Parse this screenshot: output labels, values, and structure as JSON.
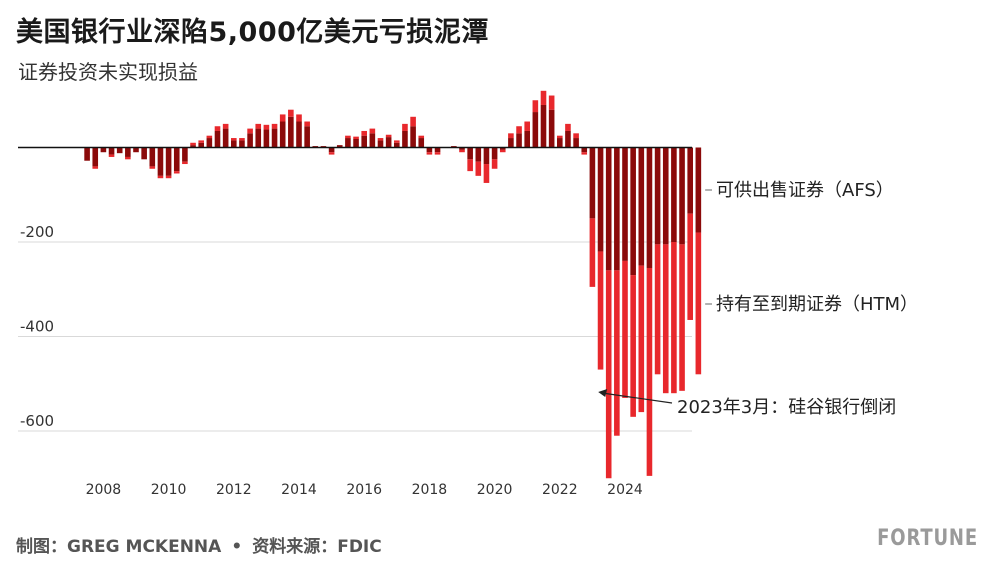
{
  "header": {
    "title": "美国银行业深陷5,000亿美元亏损泥潭",
    "subtitle": "证券投资未实现损益"
  },
  "footer": {
    "credit": "制图：GREG MCKENNA",
    "separator": "•",
    "source": "资料来源：FDIC",
    "brand": "FORTUNE"
  },
  "colors": {
    "afs": "#8b0a0a",
    "htm": "#e8282c",
    "grid": "#d9d9d9",
    "zero_line": "#111111",
    "axis_text": "#333333"
  },
  "chart_data": {
    "type": "bar",
    "stacked": true,
    "unit": "十亿美元",
    "x_start": "2007-Q1",
    "frequency": "quarterly",
    "x_tick_labels": [
      "2008",
      "2010",
      "2012",
      "2014",
      "2016",
      "2018",
      "2020",
      "2022",
      "2024"
    ],
    "y_ticks": [
      -200,
      -400,
      -600
    ],
    "ylim": [
      -700,
      130
    ],
    "grid": true,
    "series": [
      {
        "name": "可供出售证券（AFS）",
        "values": [
          0,
          0,
          -28,
          -40,
          -10,
          -15,
          -12,
          -20,
          -10,
          -25,
          -40,
          -60,
          -60,
          -50,
          -30,
          5,
          10,
          20,
          35,
          40,
          15,
          15,
          30,
          40,
          38,
          40,
          55,
          65,
          55,
          45,
          3,
          3,
          -10,
          5,
          20,
          18,
          25,
          30,
          15,
          22,
          10,
          35,
          45,
          20,
          -10,
          -10,
          0,
          3,
          -5,
          -25,
          -30,
          -35,
          -25,
          -5,
          20,
          30,
          35,
          75,
          90,
          80,
          20,
          35,
          20,
          -10,
          -150,
          -220,
          -260,
          -260,
          -240,
          -270,
          -250,
          -255,
          -205,
          -205,
          -200,
          -205,
          -140,
          -180
        ]
      },
      {
        "name": "持有至到期证券（HTM）",
        "values": [
          0,
          0,
          0,
          -5,
          0,
          -5,
          0,
          -5,
          0,
          0,
          -5,
          -5,
          -5,
          -5,
          -5,
          5,
          5,
          5,
          10,
          10,
          5,
          5,
          10,
          10,
          10,
          10,
          15,
          15,
          15,
          10,
          0,
          0,
          -5,
          0,
          5,
          5,
          10,
          10,
          5,
          5,
          5,
          15,
          20,
          5,
          -5,
          -5,
          0,
          0,
          -5,
          -25,
          -30,
          -40,
          -20,
          -5,
          10,
          15,
          20,
          25,
          30,
          30,
          5,
          15,
          10,
          -5,
          -145,
          -250,
          -440,
          -350,
          -290,
          -300,
          -310,
          -440,
          -275,
          -315,
          -320,
          -310,
          -225,
          -300
        ]
      }
    ],
    "labels": {
      "afs": "可供出售证券（AFS）",
      "htm": "持有至到期证券（HTM）"
    },
    "annotations": [
      {
        "text": "2023年3月：硅谷银行倒闭",
        "quarter_index": 64
      }
    ]
  }
}
